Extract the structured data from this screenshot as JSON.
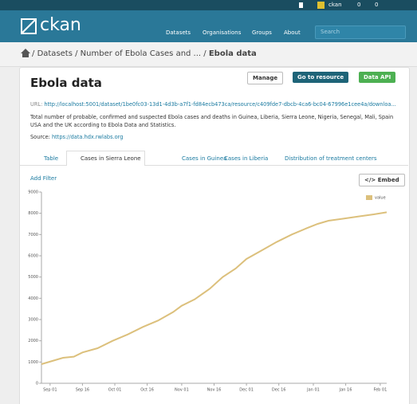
{
  "topbar": {
    "user": "ckan",
    "followers": 0,
    "activity": 0
  },
  "header": {
    "logo": "ckan",
    "nav": [
      "Datasets",
      "Organisations",
      "Groups",
      "About"
    ],
    "search": "Search"
  },
  "breadcrumb": [
    "Datasets",
    "Number of Ebola Cases and ...",
    "Ebola data"
  ],
  "resource": {
    "title": "Ebola data",
    "buttons": [
      "Manage",
      "Go to resource",
      "Data API"
    ],
    "url_label": "URL:",
    "url": "http://localhost:5001/dataset/1be0fc03-13d1-4d3b-a7f1-fd84ecb473ca/resource/c409fde7-dbcb-4ca6-bc04-67996e1cee4a/downloa...",
    "description": "Total number of probable, confirmed and suspected Ebola cases and deaths in Guinea, Liberia, Sierra Leone, Nigeria, Senegal, Mali, Spain USA and the UK according to Ebola Data and Statistics.",
    "source_label": "Source:",
    "source": "https://data.hdx.rwlabs.org"
  },
  "tabs": [
    "Table",
    "Cases in Sierra Leone",
    "Cases in Guinea",
    "Cases in Liberia",
    "Distribution of treatment centers"
  ],
  "add_filter": "Add Filter",
  "embed": "Embed",
  "chart_data": {
    "type": "line",
    "x": [
      "Aug 28",
      "Sep 02",
      "Sep 07",
      "Sep 12",
      "Sep 16",
      "Sep 23",
      "Sep 30",
      "Oct 07",
      "Oct 14",
      "Oct 21",
      "Oct 28",
      "Nov 01",
      "Nov 07",
      "Nov 14",
      "Nov 20",
      "Nov 26",
      "Dec 01",
      "Dec 08",
      "Dec 15",
      "Dec 22",
      "Dec 29",
      "Jan 03",
      "Jan 08",
      "Jan 15",
      "Jan 22",
      "Jan 29",
      "Feb 04"
    ],
    "series": [
      {
        "name": "value",
        "color": "#dcc07c",
        "values": [
          900,
          1050,
          1200,
          1250,
          1450,
          1650,
          2000,
          2300,
          2650,
          2950,
          3350,
          3650,
          3950,
          4450,
          5000,
          5400,
          5850,
          6250,
          6650,
          7000,
          7300,
          7500,
          7650,
          7750,
          7850,
          7950,
          8050
        ]
      }
    ],
    "xlim": [
      "Aug 28",
      "Feb 04"
    ],
    "xticks": [
      "Sep 01",
      "Sep 16",
      "Oct 01",
      "Oct 16",
      "Nov 01",
      "Nov 16",
      "Dec 01",
      "Dec 16",
      "Jan 01",
      "Jan 16",
      "Feb 01"
    ],
    "ylim": [
      0,
      9000
    ],
    "yticks": [
      0,
      1000,
      2000,
      3000,
      4000,
      5000,
      6000,
      7000,
      8000,
      9000
    ],
    "legend": "top-right"
  }
}
